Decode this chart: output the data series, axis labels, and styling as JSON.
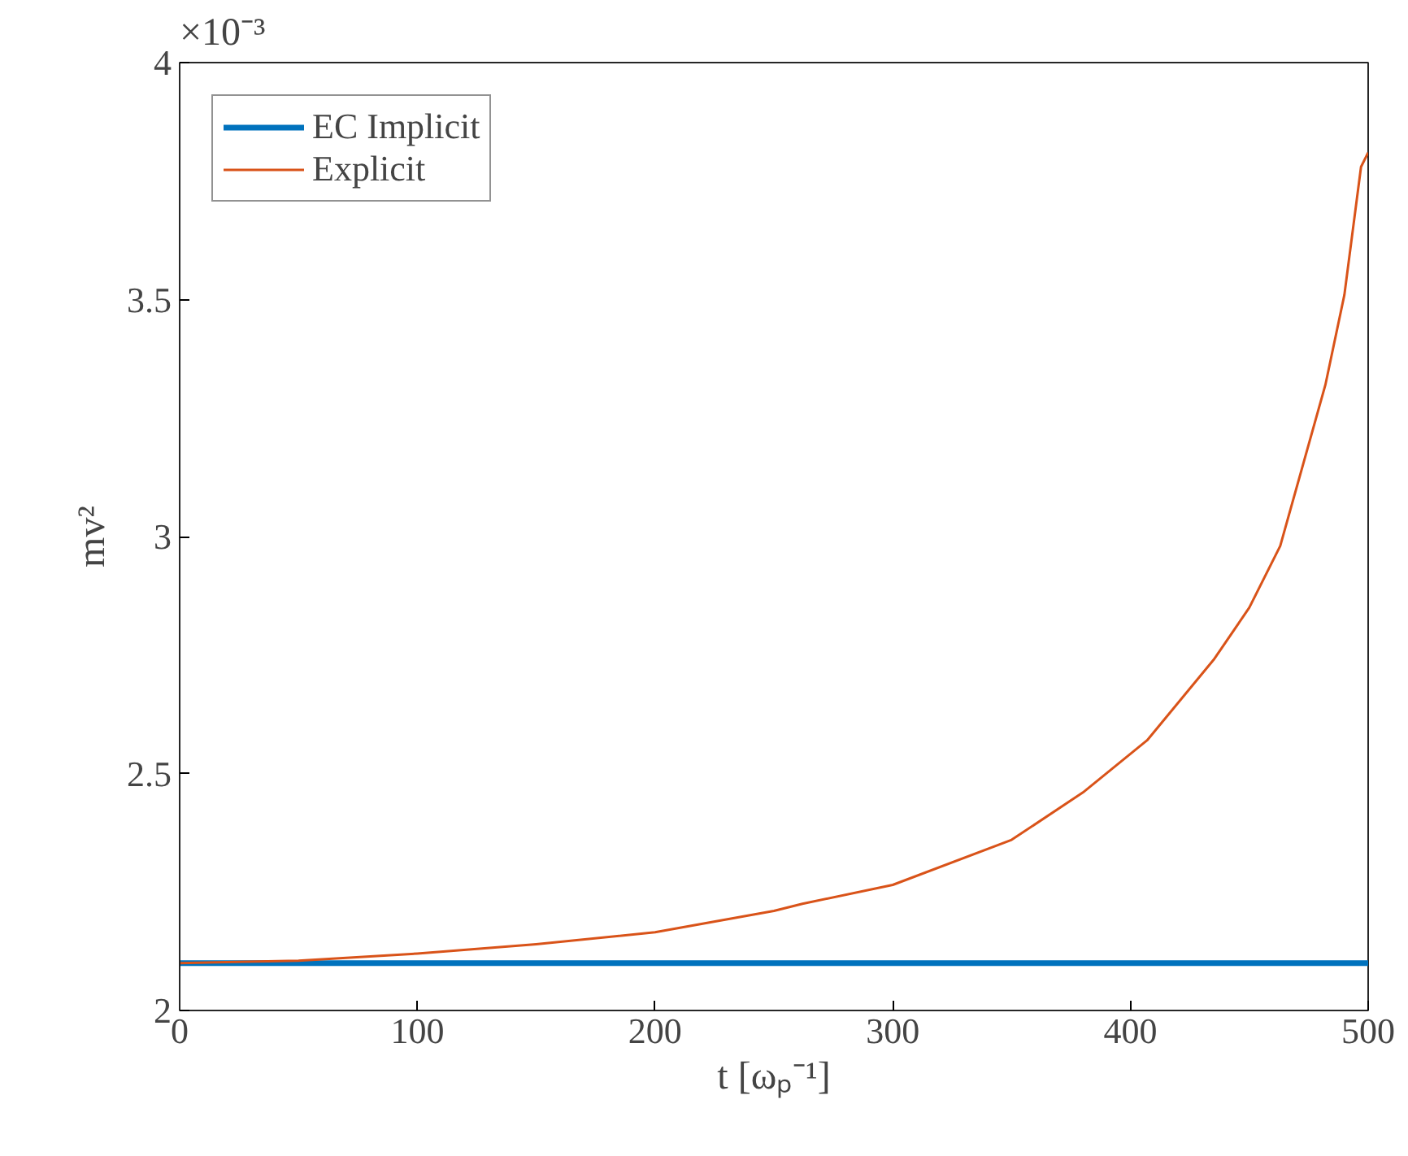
{
  "chart_data": {
    "type": "line",
    "xlabel": "t [ωₚ⁻¹]",
    "ylabel": "mv²",
    "annotations": [
      "×10⁻³"
    ],
    "xlim": [
      0,
      500
    ],
    "ylim": [
      2,
      4
    ],
    "xticks": [
      0,
      100,
      200,
      300,
      400,
      500
    ],
    "yticks": [
      2,
      2.5,
      3,
      3.5,
      4
    ],
    "grid": false,
    "legend": "top left",
    "line_style": "solid",
    "marker": "none",
    "series": [
      {
        "name": "EC Implicit",
        "color": "#0072bd",
        "x": [
          0,
          100,
          200,
          300,
          400,
          500
        ],
        "values": [
          2.1,
          2.1,
          2.1,
          2.1,
          2.1,
          2.1
        ]
      },
      {
        "name": "Explicit",
        "color": "#d95319",
        "x": [
          0,
          50,
          100,
          150,
          200,
          250,
          262,
          300,
          350,
          380,
          407,
          435,
          450,
          463,
          482,
          490,
          497,
          500
        ],
        "values": [
          2.1,
          2.105,
          2.12,
          2.14,
          2.165,
          2.21,
          2.225,
          2.265,
          2.36,
          2.46,
          2.57,
          2.74,
          2.85,
          2.98,
          3.32,
          3.51,
          3.78,
          3.81
        ]
      }
    ]
  }
}
